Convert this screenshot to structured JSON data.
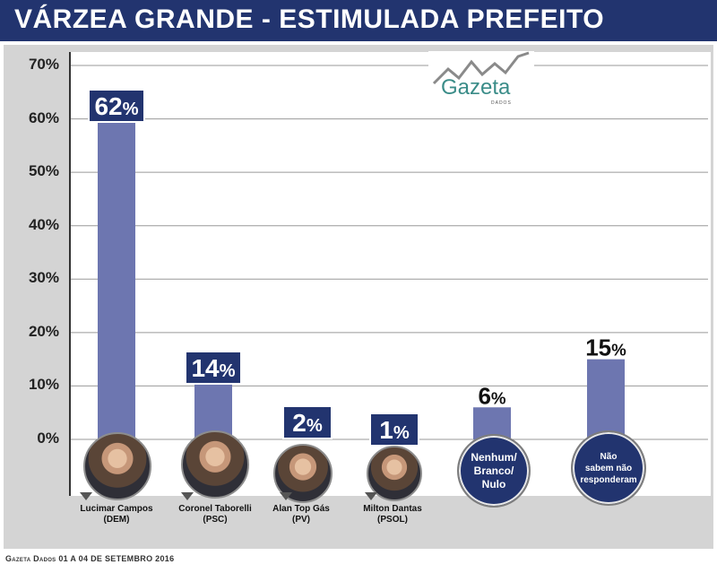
{
  "title": "VÁRZEA GRANDE - ESTIMULADA PREFEITO",
  "colors": {
    "title_bg": "#22346f",
    "bar": "#6d76b0",
    "label_box": "#22346f",
    "panel_bg": "#d4d4d4",
    "gridline": "#999999"
  },
  "logo": {
    "word": "Gazeta",
    "sub": "DADOS"
  },
  "footer": {
    "source": "Gazeta Dados",
    "dates": "01 A 04 DE SETEMBRO 2016"
  },
  "candidates": [
    {
      "name": "Lucimar Campos",
      "party": "(DEM)",
      "photo_icon": "candidate-photo"
    },
    {
      "name": "Coronel Taborelli",
      "party": "(PSC)",
      "photo_icon": "candidate-photo"
    },
    {
      "name": "Alan Top Gás",
      "party": "(PV)",
      "photo_icon": "candidate-photo"
    },
    {
      "name": "Milton Dantas",
      "party": "(PSOL)",
      "photo_icon": "candidate-photo"
    }
  ],
  "other_options": [
    {
      "lines": [
        "Nenhum/",
        "Branco/",
        "Nulo"
      ]
    },
    {
      "lines": [
        "Não",
        "sabem não",
        "responderam"
      ]
    }
  ],
  "chart_data": {
    "type": "bar",
    "title": "VÁRZEA GRANDE - ESTIMULADA PREFEITO",
    "categories": [
      "Lucimar Campos (DEM)",
      "Coronel Taborelli (PSC)",
      "Alan Top Gás (PV)",
      "Milton Dantas (PSOL)",
      "Nenhum/Branco/Nulo",
      "Não sabem não responderam"
    ],
    "values": [
      62,
      14,
      2,
      1,
      6,
      15
    ],
    "value_labels": [
      "62",
      "14",
      "2",
      "1",
      "6",
      "15"
    ],
    "unit": "%",
    "ylim": [
      0,
      70
    ],
    "yticks": [
      0,
      10,
      20,
      30,
      40,
      50,
      60,
      70
    ],
    "ytick_labels": [
      "0%",
      "10%",
      "20%",
      "30%",
      "40%",
      "50%",
      "60%",
      "70%"
    ],
    "grid": true,
    "legend": "none",
    "label_style": [
      "boxed",
      "boxed",
      "boxed",
      "boxed",
      "plain",
      "plain"
    ]
  }
}
